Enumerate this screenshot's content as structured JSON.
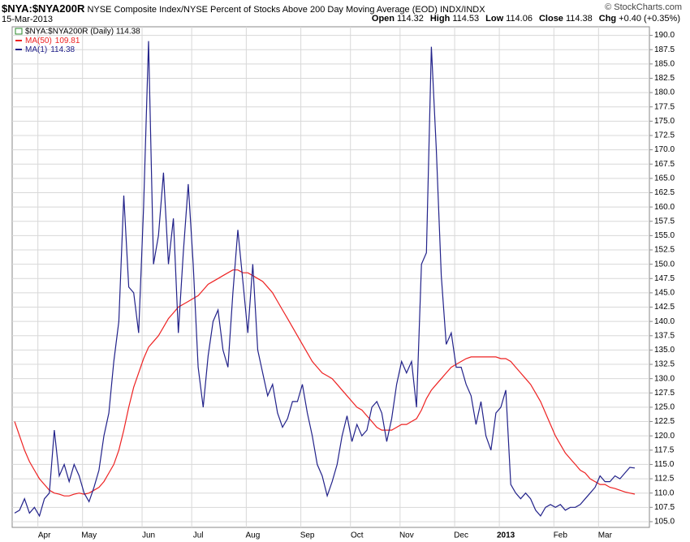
{
  "header": {
    "symbol": "$NYA:$NYA200R",
    "description": "NYSE Composite Index/NYSE Percent of Stocks Above 200 Day Moving Average (EOD) INDX/INDX",
    "date": "15-Mar-2013",
    "copyright": "© StockCharts.com",
    "quote": [
      {
        "label": "Open",
        "value": "114.32"
      },
      {
        "label": "High",
        "value": "114.53"
      },
      {
        "label": "Low",
        "value": "114.06"
      },
      {
        "label": "Close",
        "value": "114.38"
      },
      {
        "label": "Chg",
        "value": "+0.40 (+0.35%)"
      }
    ]
  },
  "chart_data": {
    "type": "line",
    "legend_title": "$NYA:$NYA200R (Daily) 114.38",
    "categories": [
      null,
      null,
      null,
      null,
      null,
      null,
      "Apr",
      null,
      null,
      null,
      null,
      null,
      null,
      null,
      null,
      "May",
      null,
      null,
      null,
      null,
      null,
      null,
      null,
      null,
      null,
      null,
      null,
      "Jun",
      null,
      null,
      null,
      null,
      null,
      null,
      null,
      null,
      null,
      "Jul",
      null,
      null,
      null,
      null,
      null,
      null,
      null,
      null,
      null,
      null,
      "Aug",
      null,
      null,
      null,
      null,
      null,
      null,
      null,
      null,
      null,
      null,
      "Sep",
      null,
      null,
      null,
      null,
      null,
      null,
      null,
      null,
      null,
      "Oct",
      null,
      null,
      null,
      null,
      null,
      null,
      null,
      null,
      null,
      "Nov",
      null,
      null,
      null,
      null,
      null,
      null,
      null,
      null,
      null,
      null,
      "Dec",
      null,
      null,
      null,
      null,
      null,
      null,
      null,
      null,
      "2013",
      null,
      null,
      null,
      null,
      null,
      null,
      null,
      null,
      null,
      null,
      "Feb",
      null,
      null,
      null,
      null,
      null,
      null,
      null,
      null,
      "Mar",
      null,
      null,
      null,
      null,
      null,
      null
    ],
    "series": [
      {
        "name": "MA(50)",
        "color": "#ee2222",
        "values": [
          122.5,
          120,
          117.5,
          115.5,
          114,
          112.5,
          111.5,
          110.5,
          110,
          109.8,
          109.5,
          109.5,
          109.8,
          110,
          109.8,
          110,
          110.5,
          111,
          112,
          113.5,
          115,
          117.5,
          121,
          125,
          128.5,
          131,
          133.5,
          135.5,
          136.5,
          137.5,
          139,
          140.5,
          141.5,
          142.5,
          143,
          143.5,
          144,
          144.5,
          145.5,
          146.5,
          147,
          147.5,
          148,
          148.5,
          149,
          149,
          148.5,
          148.5,
          148,
          147.5,
          147,
          146,
          145,
          143.5,
          142,
          140.5,
          139,
          137.5,
          136,
          134.5,
          133,
          132,
          131,
          130.5,
          130,
          129,
          128,
          127,
          126,
          125,
          124.5,
          123.5,
          122.5,
          121.5,
          121,
          121,
          121,
          121.5,
          122,
          122,
          122.5,
          123,
          124.5,
          126.5,
          128,
          129,
          130,
          131,
          132,
          132.5,
          133,
          133.5,
          133.8,
          133.8,
          133.8,
          133.8,
          133.8,
          133.8,
          133.5,
          133.5,
          133,
          132,
          131,
          130,
          129,
          127.5,
          126,
          124,
          122,
          120,
          118.5,
          117,
          116,
          115,
          114,
          113.5,
          112.5,
          112,
          111.5,
          111.5,
          111,
          110.8,
          110.5,
          110.2,
          110,
          109.81
        ]
      },
      {
        "name": "MA(1)",
        "color": "#22228a",
        "values": [
          106.5,
          107,
          109,
          106.5,
          107.5,
          106,
          109,
          110,
          121,
          113,
          115,
          112,
          115,
          113,
          110,
          108.5,
          111,
          114,
          120,
          124,
          133,
          140,
          162,
          146,
          145,
          138,
          160,
          189,
          150,
          155,
          166,
          150,
          158,
          138,
          152,
          164,
          150,
          132,
          125,
          134,
          140,
          142,
          135,
          132,
          145,
          156,
          147,
          138,
          150,
          135,
          131,
          127,
          129,
          124,
          121.5,
          123,
          126,
          126,
          129,
          124,
          120,
          115,
          113,
          109.5,
          112,
          115,
          120,
          123.5,
          119,
          122,
          120,
          121,
          125,
          126,
          124,
          119,
          123,
          129,
          133,
          131,
          133,
          125,
          150,
          152,
          188,
          170,
          148,
          136,
          138,
          132,
          132,
          129,
          127,
          122,
          126,
          120,
          117.5,
          124,
          125,
          128,
          111.5,
          110,
          109,
          110,
          109,
          107,
          106,
          107.5,
          108,
          107.5,
          108,
          107,
          107.5,
          107.5,
          108,
          109,
          110,
          111,
          113,
          112,
          112,
          113,
          112.5,
          113.5,
          114.5,
          114.38
        ]
      }
    ],
    "ylim": [
      104,
      191.5
    ],
    "yticks": [
      {
        "value": 105,
        "label": "105.0"
      },
      {
        "value": 107.5,
        "label": "107.5"
      },
      {
        "value": 110,
        "label": "110.0"
      },
      {
        "value": 112.5,
        "label": "112.5"
      },
      {
        "value": 115,
        "label": "115.0"
      },
      {
        "value": 117.5,
        "label": "117.5"
      },
      {
        "value": 120,
        "label": "120.0"
      },
      {
        "value": 122.5,
        "label": "122.5"
      },
      {
        "value": 125,
        "label": "125.0"
      },
      {
        "value": 127.5,
        "label": "127.5"
      },
      {
        "value": 130,
        "label": "130.0"
      },
      {
        "value": 132.5,
        "label": "132.5"
      },
      {
        "value": 135,
        "label": "135.0"
      },
      {
        "value": 137.5,
        "label": "137.5"
      },
      {
        "value": 140,
        "label": "140.0"
      },
      {
        "value": 142.5,
        "label": "142.5"
      },
      {
        "value": 145,
        "label": "145.0"
      },
      {
        "value": 147.5,
        "label": "147.5"
      },
      {
        "value": 150,
        "label": "150.0"
      },
      {
        "value": 152.5,
        "label": "152.5"
      },
      {
        "value": 155,
        "label": "155.0"
      },
      {
        "value": 157.5,
        "label": "157.5"
      },
      {
        "value": 160,
        "label": "160.0"
      },
      {
        "value": 162.5,
        "label": "162.5"
      },
      {
        "value": 165,
        "label": "165.0"
      },
      {
        "value": 167.5,
        "label": "167.5"
      },
      {
        "value": 170,
        "label": "170.0"
      },
      {
        "value": 172.5,
        "label": "172.5"
      },
      {
        "value": 175,
        "label": "175.0"
      },
      {
        "value": 177.5,
        "label": "177.5"
      },
      {
        "value": 180,
        "label": "180.0"
      },
      {
        "value": 182.5,
        "label": "182.5"
      },
      {
        "value": 185,
        "label": "185.0"
      },
      {
        "value": 187.5,
        "label": "187.5"
      },
      {
        "value": 190,
        "label": "190.0"
      }
    ],
    "grid": true,
    "legend": "upper left"
  }
}
